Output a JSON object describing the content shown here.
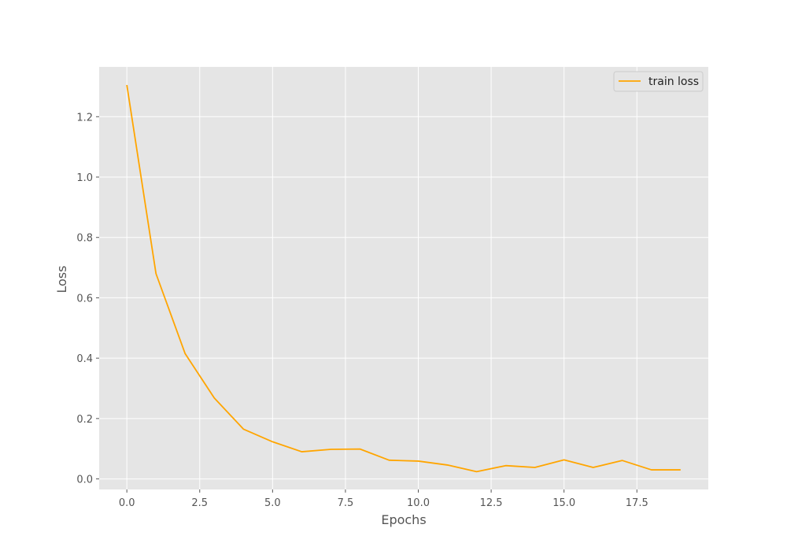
{
  "chart_data": {
    "type": "line",
    "title": "",
    "xlabel": "Epochs",
    "ylabel": "Loss",
    "xlim": [
      -0.95,
      19.95
    ],
    "ylim": [
      -0.035,
      1.365
    ],
    "grid": true,
    "legend_position": "top-right",
    "xticks": [
      0.0,
      2.5,
      5.0,
      7.5,
      10.0,
      12.5,
      15.0,
      17.5
    ],
    "xtick_labels": [
      "0.0",
      "2.5",
      "5.0",
      "7.5",
      "10.0",
      "12.5",
      "15.0",
      "17.5"
    ],
    "yticks": [
      0.0,
      0.2,
      0.4,
      0.6,
      0.8,
      1.0,
      1.2
    ],
    "ytick_labels": [
      "0.0",
      "0.2",
      "0.4",
      "0.6",
      "0.8",
      "1.0",
      "1.2"
    ],
    "x": [
      0,
      1,
      2,
      3,
      4,
      5,
      6,
      7,
      8,
      9,
      10,
      11,
      12,
      13,
      14,
      15,
      16,
      17,
      18,
      19
    ],
    "series": [
      {
        "name": "train loss",
        "color": "#FFA500",
        "values": [
          1.305,
          0.68,
          0.415,
          0.268,
          0.165,
          0.123,
          0.09,
          0.098,
          0.099,
          0.062,
          0.059,
          0.046,
          0.024,
          0.044,
          0.038,
          0.063,
          0.038,
          0.061,
          0.03,
          0.03
        ]
      }
    ],
    "colors": {
      "plot_background": "#E5E5E5",
      "grid": "#FFFFFF",
      "text": "#555555"
    }
  }
}
